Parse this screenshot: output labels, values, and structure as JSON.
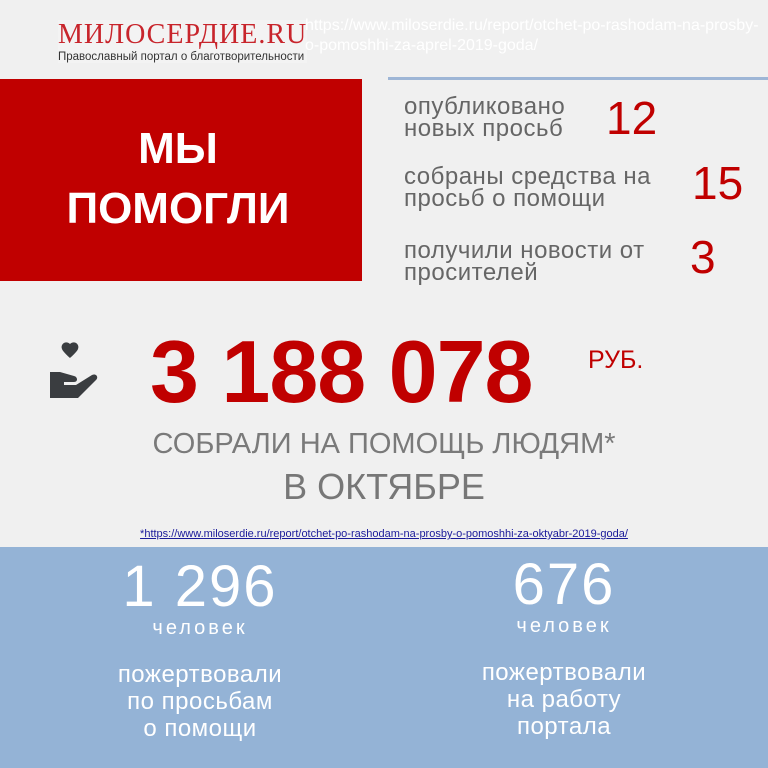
{
  "logo": {
    "title": "МИЛОСЕРДИЕ.RU",
    "subtitle": "Православный портал о благотворительности"
  },
  "headline": {
    "line1": "МЫ",
    "line2": "ПОМОГЛИ"
  },
  "stats": [
    {
      "line1": "опубликовано",
      "line2": "новых просьб",
      "value": "12"
    },
    {
      "line1": "собраны средства на",
      "line2": "просьб о помощи",
      "value": "15"
    },
    {
      "line1": "получили новости от",
      "line2": "просителей",
      "value": "3"
    }
  ],
  "ghost_url": "https://www.miloserdie.ru/report/otchet-po-rashodam-na-prosby-o-pomoshhi-za-aprel-2019-goda/",
  "total": {
    "amount": "3 188 078",
    "currency": "РУБ.",
    "caption": "СОБРАЛИ НА ПОМОЩЬ ЛЮДЯМ*",
    "period": "В ОКТЯБРЕ",
    "icon": "hand-heart-icon"
  },
  "footnote": "*https://www.miloserdie.ru/report/otchet-po-rashodam-na-prosby-o-pomoshhi-za-oktyabr-2019-goda/",
  "donors": [
    {
      "value": "1 296",
      "unit": "человек",
      "desc": [
        "пожертвовали",
        "по просьбам",
        "о помощи"
      ]
    },
    {
      "value": "676",
      "unit": "человек",
      "desc": [
        "пожертвовали",
        "на работу",
        "портала"
      ]
    }
  ],
  "colors": {
    "accent": "#c00000",
    "blue": "#94b3d6",
    "background": "#f0f0f0"
  }
}
